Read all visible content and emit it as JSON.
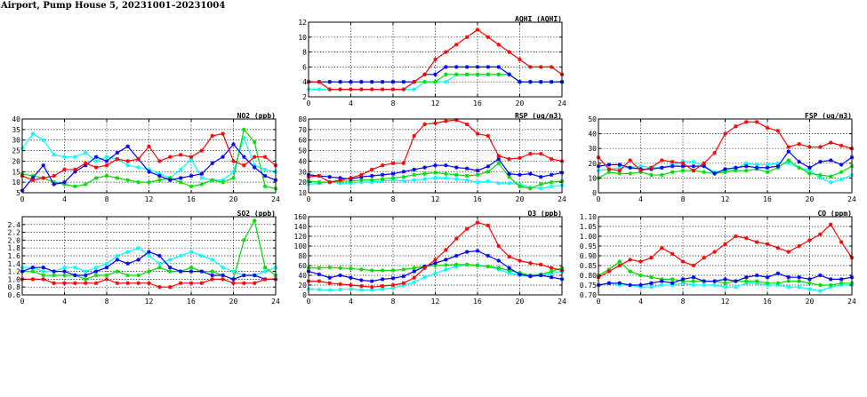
{
  "page_title": "Airport, Pump House 5, 20231001–20231004",
  "chart_data": [
    {
      "id": "aqhi",
      "type": "line",
      "title": "AQHI (AQHI)",
      "xlabel": "",
      "ylabel": "",
      "xlim": [
        0,
        24
      ],
      "ylim": [
        2,
        12
      ],
      "xticks": [
        0,
        4,
        8,
        12,
        16,
        20,
        24
      ],
      "yticks": [
        2,
        4,
        6,
        8,
        10,
        12
      ],
      "ytick_labels": [
        "2",
        "4",
        "6",
        "8",
        "10",
        "12"
      ],
      "grid": true,
      "series": [
        {
          "color": "#00ffff",
          "values": [
            3,
            3,
            3,
            3,
            3,
            3,
            3,
            3,
            3,
            3,
            3,
            4,
            4,
            4,
            5,
            5,
            5,
            5,
            5,
            5,
            4,
            4,
            4,
            4,
            4
          ]
        },
        {
          "color": "#00dd00",
          "values": [
            4,
            4,
            4,
            4,
            4,
            4,
            4,
            4,
            4,
            4,
            4,
            4,
            4,
            5,
            5,
            5,
            5,
            5,
            5,
            5,
            4,
            4,
            4,
            4,
            4
          ]
        },
        {
          "color": "#0000ff",
          "values": [
            4,
            4,
            4,
            4,
            4,
            4,
            4,
            4,
            4,
            4,
            4,
            5,
            5,
            6,
            6,
            6,
            6,
            6,
            6,
            5,
            4,
            4,
            4,
            4,
            4
          ]
        },
        {
          "color": "#ff0000",
          "values": [
            4,
            4,
            3,
            3,
            3,
            3,
            3,
            3,
            3,
            3,
            4,
            5,
            7,
            8,
            9,
            10,
            11,
            10,
            9,
            8,
            7,
            6,
            6,
            6,
            5
          ]
        }
      ]
    },
    {
      "id": "no2",
      "type": "line",
      "title": "NO2 (ppb)",
      "xlabel": "",
      "ylabel": "",
      "xlim": [
        0,
        24
      ],
      "ylim": [
        5,
        40
      ],
      "xticks": [
        0,
        4,
        8,
        12,
        16,
        20,
        24
      ],
      "yticks": [
        5,
        10,
        15,
        20,
        25,
        30,
        35,
        40
      ],
      "ytick_labels": [
        "5",
        "10",
        "15",
        "20",
        "25",
        "30",
        "35",
        "40"
      ],
      "grid": true,
      "series": [
        {
          "color": "#00ffff",
          "values": [
            26,
            33,
            30,
            23,
            22,
            22,
            24,
            20,
            22,
            21,
            18,
            17,
            16,
            14,
            12,
            16,
            21,
            12,
            11,
            11,
            15,
            31,
            18,
            16,
            15
          ]
        },
        {
          "color": "#00dd00",
          "values": [
            14,
            13,
            12,
            10,
            9,
            8,
            9,
            12,
            13,
            12,
            11,
            10,
            10,
            11,
            12,
            10,
            8,
            9,
            11,
            10,
            12,
            35,
            29,
            8,
            7
          ]
        },
        {
          "color": "#0000ff",
          "values": [
            6,
            12,
            18,
            9,
            10,
            15,
            18,
            22,
            20,
            24,
            27,
            21,
            15,
            13,
            11,
            12,
            13,
            14,
            19,
            22,
            28,
            22,
            17,
            13,
            11
          ]
        },
        {
          "color": "#ff0000",
          "values": [
            13,
            11,
            12,
            13,
            16,
            16,
            19,
            17,
            18,
            21,
            20,
            21,
            27,
            20,
            22,
            23,
            22,
            25,
            32,
            33,
            20,
            18,
            22,
            22,
            18
          ]
        }
      ]
    },
    {
      "id": "rsp",
      "type": "line",
      "title": "RSP (ug/m3)",
      "xlabel": "",
      "ylabel": "",
      "xlim": [
        0,
        24
      ],
      "ylim": [
        10,
        80
      ],
      "xticks": [
        0,
        4,
        8,
        12,
        16,
        20,
        24
      ],
      "yticks": [
        10,
        20,
        30,
        40,
        50,
        60,
        70,
        80
      ],
      "ytick_labels": [
        "10",
        "20",
        "30",
        "40",
        "50",
        "60",
        "70",
        "80"
      ],
      "grid": true,
      "series": [
        {
          "color": "#00ffff",
          "values": [
            18,
            19,
            20,
            19,
            19,
            20,
            20,
            21,
            22,
            21,
            22,
            23,
            24,
            24,
            23,
            22,
            20,
            21,
            19,
            19,
            18,
            15,
            14,
            16,
            17
          ]
        },
        {
          "color": "#00dd00",
          "values": [
            21,
            20,
            20,
            21,
            21,
            22,
            22,
            23,
            24,
            25,
            27,
            28,
            29,
            28,
            27,
            26,
            27,
            30,
            38,
            25,
            16,
            14,
            18,
            20,
            21
          ]
        },
        {
          "color": "#0000ff",
          "values": [
            27,
            26,
            25,
            24,
            23,
            25,
            26,
            27,
            28,
            30,
            32,
            34,
            36,
            36,
            34,
            33,
            31,
            35,
            42,
            28,
            27,
            28,
            25,
            27,
            29
          ]
        },
        {
          "color": "#ff0000",
          "values": [
            25,
            26,
            20,
            22,
            24,
            27,
            32,
            36,
            38,
            38,
            64,
            75,
            76,
            78,
            79,
            75,
            66,
            64,
            45,
            42,
            43,
            47,
            47,
            42,
            40
          ]
        }
      ]
    },
    {
      "id": "fsp",
      "type": "line",
      "title": "FSP (ug/m3)",
      "xlabel": "",
      "ylabel": "",
      "xlim": [
        0,
        24
      ],
      "ylim": [
        0,
        50
      ],
      "xticks": [
        0,
        4,
        8,
        12,
        16,
        20,
        24
      ],
      "yticks": [
        0,
        10,
        20,
        30,
        40,
        50
      ],
      "ytick_labels": [
        "0",
        "10",
        "20",
        "30",
        "40",
        "50"
      ],
      "grid": true,
      "series": [
        {
          "color": "#00ffff",
          "values": [
            15,
            16,
            17,
            17,
            18,
            17,
            17,
            19,
            21,
            21,
            18,
            14,
            15,
            16,
            20,
            19,
            19,
            20,
            20,
            17,
            15,
            10,
            7,
            9,
            12
          ]
        },
        {
          "color": "#00dd00",
          "values": [
            10,
            14,
            13,
            13,
            14,
            12,
            12,
            14,
            15,
            15,
            14,
            13,
            14,
            15,
            15,
            16,
            14,
            17,
            22,
            17,
            13,
            12,
            11,
            14,
            18
          ]
        },
        {
          "color": "#0000ff",
          "values": [
            18,
            19,
            19,
            17,
            16,
            16,
            17,
            18,
            18,
            18,
            18,
            13,
            16,
            17,
            18,
            17,
            17,
            18,
            28,
            21,
            17,
            21,
            22,
            19,
            24
          ]
        },
        {
          "color": "#ff0000",
          "values": [
            24,
            16,
            15,
            22,
            15,
            17,
            22,
            21,
            20,
            15,
            20,
            27,
            40,
            45,
            48,
            48,
            44,
            42,
            31,
            33,
            31,
            31,
            34,
            32,
            30
          ]
        }
      ]
    },
    {
      "id": "so2",
      "type": "line",
      "title": "SO2 (ppb)",
      "xlabel": "",
      "ylabel": "",
      "xlim": [
        0,
        24
      ],
      "ylim": [
        0.6,
        2.6
      ],
      "xticks": [
        0,
        4,
        8,
        12,
        16,
        20,
        24
      ],
      "yticks": [
        0.6,
        0.8,
        1.0,
        1.2,
        1.4,
        1.6,
        1.8,
        2.0,
        2.2,
        2.4
      ],
      "ytick_labels": [
        "0.6",
        "0.8",
        "1.0",
        "1.2",
        "1.4",
        "1.6",
        "1.8",
        "2.0",
        "2.2",
        "2.4"
      ],
      "grid": true,
      "series": [
        {
          "color": "#00ffff",
          "values": [
            1.3,
            1.3,
            1.2,
            1.2,
            1.3,
            1.3,
            1.2,
            1.3,
            1.4,
            1.6,
            1.7,
            1.8,
            1.6,
            1.4,
            1.5,
            1.6,
            1.7,
            1.6,
            1.5,
            1.3,
            1.2,
            1.1,
            1.1,
            1.2,
            1.3
          ]
        },
        {
          "color": "#00dd00",
          "values": [
            1.2,
            1.2,
            1.1,
            1.1,
            1.1,
            1.1,
            1.0,
            1.1,
            1.1,
            1.2,
            1.1,
            1.1,
            1.2,
            1.3,
            1.2,
            1.2,
            1.3,
            1.2,
            1.2,
            1.1,
            1.0,
            2.0,
            2.5,
            1.3,
            1.1
          ]
        },
        {
          "color": "#0000ff",
          "values": [
            1.2,
            1.3,
            1.3,
            1.2,
            1.2,
            1.1,
            1.1,
            1.2,
            1.3,
            1.5,
            1.4,
            1.5,
            1.7,
            1.6,
            1.3,
            1.2,
            1.2,
            1.2,
            1.1,
            1.1,
            1.0,
            1.1,
            1.1,
            1.0,
            1.0
          ]
        },
        {
          "color": "#ff0000",
          "values": [
            1.0,
            1.0,
            1.0,
            0.9,
            0.9,
            0.9,
            0.9,
            0.9,
            1.0,
            0.9,
            0.9,
            0.9,
            0.9,
            0.8,
            0.8,
            0.9,
            0.9,
            0.9,
            1.0,
            1.0,
            0.9,
            0.9,
            0.9,
            1.0,
            1.0
          ]
        }
      ]
    },
    {
      "id": "o3",
      "type": "line",
      "title": "O3 (ppb)",
      "xlabel": "",
      "ylabel": "",
      "xlim": [
        0,
        24
      ],
      "ylim": [
        0,
        160
      ],
      "xticks": [
        0,
        4,
        8,
        12,
        16,
        20,
        24
      ],
      "yticks": [
        0,
        20,
        40,
        60,
        80,
        100,
        120,
        140,
        160
      ],
      "ytick_labels": [
        "0",
        "20",
        "40",
        "60",
        "80",
        "100",
        "120",
        "140",
        "160"
      ],
      "grid": true,
      "series": [
        {
          "color": "#00ffff",
          "values": [
            12,
            11,
            10,
            11,
            12,
            10,
            10,
            12,
            14,
            20,
            26,
            36,
            44,
            52,
            58,
            62,
            61,
            58,
            52,
            45,
            40,
            38,
            40,
            44,
            48
          ]
        },
        {
          "color": "#00dd00",
          "values": [
            55,
            55,
            56,
            55,
            54,
            52,
            50,
            50,
            50,
            52,
            55,
            58,
            60,
            61,
            62,
            62,
            60,
            58,
            55,
            50,
            45,
            40,
            42,
            48,
            55
          ]
        },
        {
          "color": "#0000ff",
          "values": [
            48,
            42,
            35,
            40,
            35,
            30,
            28,
            32,
            34,
            38,
            48,
            58,
            65,
            72,
            80,
            88,
            90,
            80,
            70,
            55,
            42,
            38,
            40,
            36,
            32
          ]
        },
        {
          "color": "#ff0000",
          "values": [
            28,
            28,
            24,
            22,
            20,
            18,
            16,
            18,
            20,
            24,
            35,
            55,
            72,
            92,
            115,
            135,
            148,
            142,
            100,
            78,
            70,
            65,
            62,
            55,
            50
          ]
        }
      ]
    },
    {
      "id": "co",
      "type": "line",
      "title": "CO (ppm)",
      "xlabel": "",
      "ylabel": "",
      "xlim": [
        0,
        24
      ],
      "ylim": [
        0.7,
        1.1
      ],
      "xticks": [
        0,
        4,
        8,
        12,
        16,
        20,
        24
      ],
      "yticks": [
        0.7,
        0.75,
        0.8,
        0.85,
        0.9,
        0.95,
        1.0,
        1.05,
        1.1
      ],
      "ytick_labels": [
        "0.70",
        "0.75",
        "0.80",
        "0.85",
        "0.90",
        "0.95",
        "1.00",
        "1.05",
        "1.10"
      ],
      "grid": true,
      "series": [
        {
          "color": "#00ffff",
          "values": [
            0.75,
            0.76,
            0.75,
            0.75,
            0.74,
            0.74,
            0.75,
            0.75,
            0.76,
            0.75,
            0.75,
            0.75,
            0.74,
            0.74,
            0.76,
            0.76,
            0.75,
            0.75,
            0.74,
            0.74,
            0.73,
            0.72,
            0.74,
            0.75,
            0.75
          ]
        },
        {
          "color": "#00dd00",
          "values": [
            0.8,
            0.83,
            0.87,
            0.82,
            0.8,
            0.79,
            0.78,
            0.78,
            0.77,
            0.77,
            0.77,
            0.77,
            0.76,
            0.77,
            0.77,
            0.77,
            0.76,
            0.76,
            0.77,
            0.77,
            0.76,
            0.75,
            0.75,
            0.76,
            0.76
          ]
        },
        {
          "color": "#0000ff",
          "values": [
            0.75,
            0.76,
            0.76,
            0.75,
            0.75,
            0.76,
            0.77,
            0.76,
            0.78,
            0.79,
            0.77,
            0.77,
            0.78,
            0.77,
            0.79,
            0.8,
            0.79,
            0.81,
            0.79,
            0.79,
            0.78,
            0.8,
            0.78,
            0.78,
            0.79
          ]
        },
        {
          "color": "#ff0000",
          "values": [
            0.79,
            0.82,
            0.85,
            0.88,
            0.87,
            0.89,
            0.94,
            0.91,
            0.87,
            0.85,
            0.89,
            0.92,
            0.96,
            1.0,
            0.99,
            0.97,
            0.96,
            0.94,
            0.92,
            0.95,
            0.98,
            1.01,
            1.06,
            0.97,
            0.89
          ]
        }
      ]
    }
  ]
}
